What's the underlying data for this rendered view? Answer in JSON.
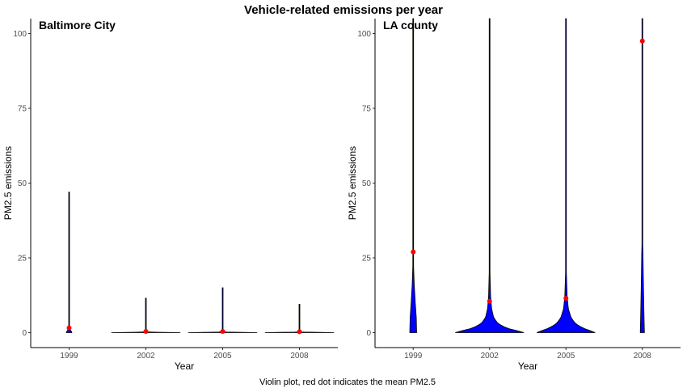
{
  "chart_data": {
    "type": "violin",
    "title": "Vehicle-related emissions per year",
    "caption": "Violin plot, red dot indicates the mean PM2.5",
    "colors": {
      "violin_fill": "#0000ff",
      "violin_outline": "#000000",
      "mean_dot": "#ff0000",
      "axis": "#000000"
    },
    "grid": false,
    "panels": [
      {
        "title": "Baltimore City",
        "xlabel": "Year",
        "ylabel": "PM2.5 emissions",
        "categories": [
          "1999",
          "2002",
          "2005",
          "2008"
        ],
        "ylim": [
          -5,
          105
        ],
        "yticks": [
          0,
          25,
          50,
          75,
          100
        ],
        "violins": [
          {
            "year": "1999",
            "max": 47,
            "mean": 1.6,
            "profile": [
              [
                0,
                0.08
              ],
              [
                0.4,
                0.07
              ],
              [
                0.8,
                0.04
              ],
              [
                1.5,
                0.02
              ],
              [
                3,
                0.008
              ],
              [
                6,
                0.004
              ],
              [
                47,
                0.003
              ]
            ]
          },
          {
            "year": "2002",
            "max": 11.5,
            "mean": 0.4,
            "profile": [
              [
                0,
                1.0
              ],
              [
                0.08,
                0.65
              ],
              [
                0.2,
                0.05
              ],
              [
                0.5,
                0.008
              ],
              [
                2,
                0.005
              ],
              [
                11.5,
                0.003
              ]
            ]
          },
          {
            "year": "2005",
            "max": 15,
            "mean": 0.4,
            "profile": [
              [
                0,
                1.0
              ],
              [
                0.08,
                0.65
              ],
              [
                0.2,
                0.05
              ],
              [
                0.5,
                0.01
              ],
              [
                3,
                0.005
              ],
              [
                15,
                0.003
              ]
            ]
          },
          {
            "year": "2008",
            "max": 9.5,
            "mean": 0.3,
            "profile": [
              [
                0,
                1.0
              ],
              [
                0.08,
                0.65
              ],
              [
                0.2,
                0.05
              ],
              [
                0.5,
                0.008
              ],
              [
                2,
                0.005
              ],
              [
                9.5,
                0.003
              ]
            ]
          }
        ]
      },
      {
        "title": "LA county",
        "xlabel": "Year",
        "ylabel": "PM2.5 emissions",
        "categories": [
          "1999",
          "2002",
          "2005",
          "2008"
        ],
        "ylim": [
          -5,
          105
        ],
        "yticks": [
          0,
          25,
          50,
          75,
          100
        ],
        "violins": [
          {
            "year": "1999",
            "max": 105,
            "mean": 27,
            "profile": [
              [
                0,
                0.1
              ],
              [
                5,
                0.09
              ],
              [
                10,
                0.06
              ],
              [
                14,
                0.04
              ],
              [
                16,
                0.03
              ],
              [
                22,
                0.012
              ],
              [
                45,
                0.008
              ],
              [
                64,
                0.006
              ],
              [
                66,
                0.003
              ],
              [
                105,
                0.003
              ]
            ]
          },
          {
            "year": "2002",
            "max": 105,
            "mean": 10.5,
            "profile": [
              [
                0,
                1.0
              ],
              [
                0.5,
                0.85
              ],
              [
                1.5,
                0.5
              ],
              [
                3,
                0.25
              ],
              [
                5,
                0.12
              ],
              [
                8,
                0.06
              ],
              [
                12,
                0.03
              ],
              [
                20,
                0.012
              ],
              [
                44,
                0.008
              ],
              [
                105,
                0.003
              ]
            ]
          },
          {
            "year": "2005",
            "max": 105,
            "mean": 11.5,
            "profile": [
              [
                0,
                0.85
              ],
              [
                0.5,
                0.75
              ],
              [
                1.5,
                0.5
              ],
              [
                3,
                0.28
              ],
              [
                5,
                0.15
              ],
              [
                8,
                0.07
              ],
              [
                12,
                0.035
              ],
              [
                20,
                0.012
              ],
              [
                32,
                0.008
              ],
              [
                67,
                0.005
              ],
              [
                105,
                0.003
              ]
            ]
          },
          {
            "year": "2008",
            "max": 105,
            "mean": 97.5,
            "profile": [
              [
                0,
                0.06
              ],
              [
                5,
                0.05
              ],
              [
                14,
                0.035
              ],
              [
                21,
                0.025
              ],
              [
                27,
                0.018
              ],
              [
                30,
                0.01
              ],
              [
                47,
                0.006
              ],
              [
                50,
                0.003
              ],
              [
                105,
                0.003
              ]
            ]
          }
        ]
      }
    ]
  }
}
